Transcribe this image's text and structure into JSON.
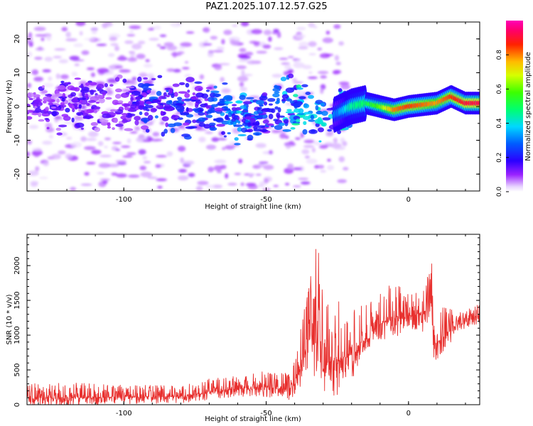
{
  "title": "PAZ1.2025.107.12.57.G25",
  "colors": {
    "snr_line": "#e8302e",
    "axis": "#000000",
    "background": "#ffffff"
  },
  "chart_data": [
    {
      "type": "heatmap",
      "xlabel": "Height of straight line (km)",
      "ylabel": "Frequency (Hz)",
      "xlim": [
        -134,
        25
      ],
      "ylim": [
        -25,
        25
      ],
      "x_ticks": [
        -100,
        -50,
        0
      ],
      "y_ticks": [
        -20,
        -10,
        0,
        10,
        20
      ],
      "colorbar": {
        "label": "Normalized spectral amplitude",
        "range": [
          0.0,
          1.0
        ],
        "ticks": [
          "0.0",
          "0.2",
          "0.4",
          "0.6",
          "0.8"
        ],
        "tick_values": [
          0.0,
          0.2,
          0.4,
          0.6,
          0.8
        ],
        "scale": "hsv (violet → blue → cyan → green → yellow → orange → red → magenta)"
      },
      "ridge": {
        "description": "Energy concentrated near 0 Hz; diffuse and weak (violet/blue, ±8 Hz) below about -25 km, narrow and strong (cyan to red) above -20 km, drifting from about -1 Hz to +3 Hz",
        "x": [
          -130,
          -120,
          -110,
          -100,
          -90,
          -80,
          -70,
          -60,
          -50,
          -40,
          -30,
          -25,
          -20,
          -15,
          -10,
          -5,
          0,
          5,
          10,
          15,
          20,
          25
        ],
        "freq": [
          0,
          1,
          0.5,
          0,
          1,
          0,
          -1,
          -3,
          -2,
          0,
          -4,
          -2,
          0,
          1,
          0,
          -1,
          0,
          0.5,
          1,
          3,
          1,
          1
        ],
        "amplitude": [
          0.12,
          0.14,
          0.12,
          0.12,
          0.22,
          0.2,
          0.22,
          0.3,
          0.22,
          0.35,
          0.32,
          0.3,
          0.45,
          0.5,
          0.6,
          0.8,
          0.85,
          0.82,
          0.78,
          0.85,
          0.9,
          0.92
        ]
      }
    },
    {
      "type": "line",
      "xlabel": "Height of straight line (km)",
      "ylabel": "SNR (10 * v/v)",
      "xlim": [
        -134,
        25
      ],
      "ylim": [
        0,
        2450
      ],
      "x_ticks": [
        -100,
        -50,
        0
      ],
      "y_ticks": [
        0,
        500,
        1000,
        1500,
        2000
      ],
      "envelope": {
        "x": [
          -134,
          -120,
          -100,
          -80,
          -70,
          -60,
          -50,
          -45,
          -41,
          -38,
          -35,
          -33,
          -31.5,
          -30,
          -28,
          -25,
          -22,
          -18,
          -15,
          -12,
          -9,
          -6,
          -3,
          0,
          4,
          7,
          8,
          9,
          12,
          16,
          20,
          25
        ],
        "mean": [
          110,
          100,
          110,
          120,
          180,
          230,
          250,
          230,
          210,
          560,
          1000,
          1050,
          1250,
          480,
          620,
          650,
          700,
          760,
          920,
          1100,
          1180,
          1260,
          1230,
          1280,
          1300,
          1380,
          1500,
          850,
          980,
          1120,
          1190,
          1290
        ],
        "max": [
          300,
          320,
          280,
          280,
          370,
          420,
          500,
          470,
          460,
          1050,
          1800,
          2200,
          2380,
          1700,
          1500,
          1650,
          1250,
          1400,
          1450,
          1650,
          1600,
          1750,
          1700,
          1600,
          1750,
          1850,
          2150,
          1300,
          1400,
          1400,
          1350,
          1500
        ]
      }
    }
  ]
}
